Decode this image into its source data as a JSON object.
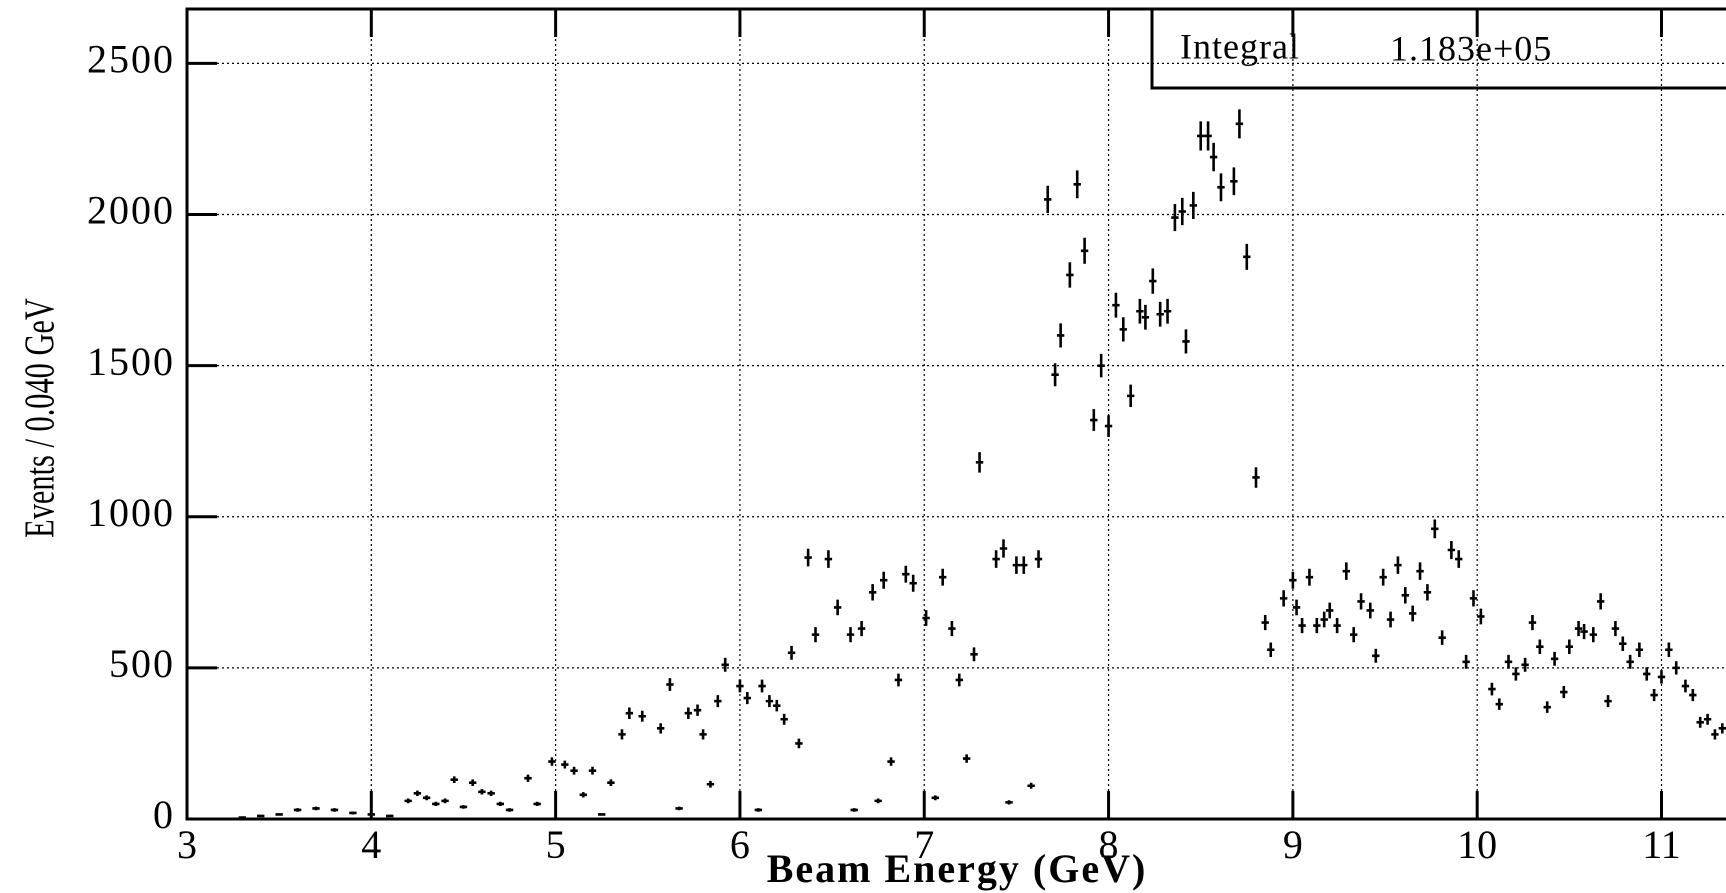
{
  "chart_data": {
    "type": "errorbar",
    "xlabel": "Beam Energy (GeV)",
    "ylabel": "Events / 0.040 GeV",
    "stats": {
      "label": "Integral",
      "value": "1.183e+05"
    },
    "xlim": [
      3,
      11.35
    ],
    "ylim": [
      0,
      2680
    ],
    "xticks": [
      3,
      4,
      5,
      6,
      7,
      8,
      9,
      10,
      11
    ],
    "yticks": [
      0,
      500,
      1000,
      1500,
      2000,
      2500
    ],
    "grid": true,
    "color": "#000000",
    "bin_width": 0.04,
    "x": [
      3.3,
      3.4,
      3.5,
      3.6,
      3.7,
      3.8,
      3.9,
      4.0,
      4.1,
      4.2,
      4.25,
      4.3,
      4.35,
      4.4,
      4.45,
      4.5,
      4.55,
      4.6,
      4.65,
      4.7,
      4.75,
      4.85,
      4.9,
      4.98,
      5.05,
      5.1,
      5.15,
      5.2,
      5.25,
      5.3,
      5.36,
      5.4,
      5.47,
      5.57,
      5.62,
      5.67,
      5.72,
      5.77,
      5.8,
      5.84,
      5.88,
      5.92,
      6.0,
      6.04,
      6.1,
      6.12,
      6.16,
      6.2,
      6.24,
      6.28,
      6.32,
      6.37,
      6.41,
      6.48,
      6.53,
      6.6,
      6.62,
      6.66,
      6.72,
      6.75,
      6.78,
      6.82,
      6.86,
      6.9,
      6.94,
      7.01,
      7.06,
      7.1,
      7.15,
      7.19,
      7.23,
      7.27,
      7.3,
      7.39,
      7.43,
      7.46,
      7.5,
      7.54,
      7.58,
      7.62,
      7.67,
      7.71,
      7.74,
      7.79,
      7.83,
      7.87,
      7.92,
      7.96,
      8.0,
      8.04,
      8.08,
      8.12,
      8.17,
      8.2,
      8.24,
      8.28,
      8.32,
      8.36,
      8.4,
      8.42,
      8.46,
      8.5,
      8.54,
      8.57,
      8.61,
      8.68,
      8.71,
      8.75,
      8.8,
      8.85,
      8.88,
      8.95,
      9.0,
      9.02,
      9.05,
      9.09,
      9.13,
      9.17,
      9.2,
      9.24,
      9.29,
      9.33,
      9.37,
      9.42,
      9.45,
      9.49,
      9.53,
      9.57,
      9.61,
      9.65,
      9.69,
      9.73,
      9.77,
      9.81,
      9.86,
      9.9,
      9.94,
      9.98,
      10.02,
      10.08,
      10.12,
      10.17,
      10.21,
      10.26,
      10.3,
      10.34,
      10.38,
      10.42,
      10.47,
      10.5,
      10.55,
      10.58,
      10.63,
      10.67,
      10.71,
      10.75,
      10.79,
      10.83,
      10.88,
      10.92,
      10.96,
      11.0,
      11.04,
      11.08,
      11.13,
      11.17,
      11.21,
      11.25,
      11.29,
      11.33
    ],
    "values": [
      5,
      10,
      15,
      30,
      35,
      30,
      20,
      15,
      10,
      60,
      85,
      70,
      50,
      60,
      130,
      40,
      120,
      90,
      85,
      50,
      30,
      135,
      50,
      190,
      180,
      160,
      80,
      160,
      15,
      120,
      280,
      350,
      340,
      300,
      445,
      35,
      350,
      360,
      280,
      115,
      390,
      510,
      440,
      400,
      30,
      440,
      390,
      375,
      330,
      550,
      250,
      865,
      610,
      860,
      700,
      610,
      30,
      630,
      750,
      60,
      790,
      190,
      460,
      810,
      780,
      665,
      70,
      800,
      630,
      460,
      200,
      545,
      1180,
      860,
      895,
      55,
      840,
      840,
      110,
      860,
      2050,
      1470,
      1600,
      1800,
      2100,
      1880,
      1320,
      1500,
      1300,
      1700,
      1620,
      1400,
      1680,
      1660,
      1780,
      1670,
      1680,
      1990,
      2010,
      1580,
      2030,
      2260,
      2260,
      2190,
      2090,
      2110,
      2300,
      1860,
      1130,
      650,
      560,
      730,
      790,
      700,
      640,
      800,
      640,
      660,
      690,
      640,
      820,
      610,
      720,
      690,
      540,
      800,
      660,
      840,
      740,
      680,
      820,
      750,
      960,
      600,
      890,
      860,
      520,
      730,
      670,
      430,
      380,
      520,
      480,
      510,
      650,
      570,
      370,
      530,
      420,
      570,
      630,
      620,
      610,
      720,
      390,
      630,
      580,
      520,
      560,
      480,
      410,
      470,
      560,
      500,
      440,
      410,
      320,
      330,
      280,
      300
    ],
    "errors": [
      2,
      3,
      4,
      6,
      6,
      6,
      5,
      4,
      3,
      8,
      9,
      8,
      7,
      8,
      11,
      6,
      11,
      9,
      9,
      7,
      6,
      12,
      7,
      14,
      13,
      13,
      9,
      13,
      4,
      11,
      17,
      19,
      18,
      17,
      21,
      6,
      19,
      19,
      17,
      11,
      20,
      23,
      21,
      20,
      6,
      21,
      20,
      19,
      18,
      23,
      16,
      29,
      25,
      29,
      26,
      25,
      6,
      25,
      27,
      8,
      28,
      14,
      21,
      28,
      28,
      26,
      8,
      28,
      25,
      21,
      14,
      23,
      34,
      29,
      30,
      7,
      29,
      29,
      10,
      29,
      45,
      38,
      40,
      42,
      46,
      43,
      36,
      39,
      36,
      41,
      40,
      37,
      41,
      41,
      42,
      41,
      41,
      45,
      45,
      40,
      45,
      48,
      48,
      47,
      46,
      46,
      48,
      43,
      34,
      25,
      24,
      27,
      28,
      26,
      25,
      28,
      25,
      26,
      26,
      25,
      29,
      25,
      27,
      26,
      23,
      28,
      26,
      29,
      27,
      26,
      29,
      27,
      31,
      24,
      30,
      29,
      23,
      27,
      26,
      21,
      19,
      23,
      22,
      23,
      25,
      24,
      19,
      23,
      20,
      24,
      25,
      25,
      25,
      27,
      20,
      25,
      24,
      23,
      24,
      22,
      20,
      22,
      24,
      22,
      21,
      20,
      18,
      18,
      17,
      17
    ]
  }
}
